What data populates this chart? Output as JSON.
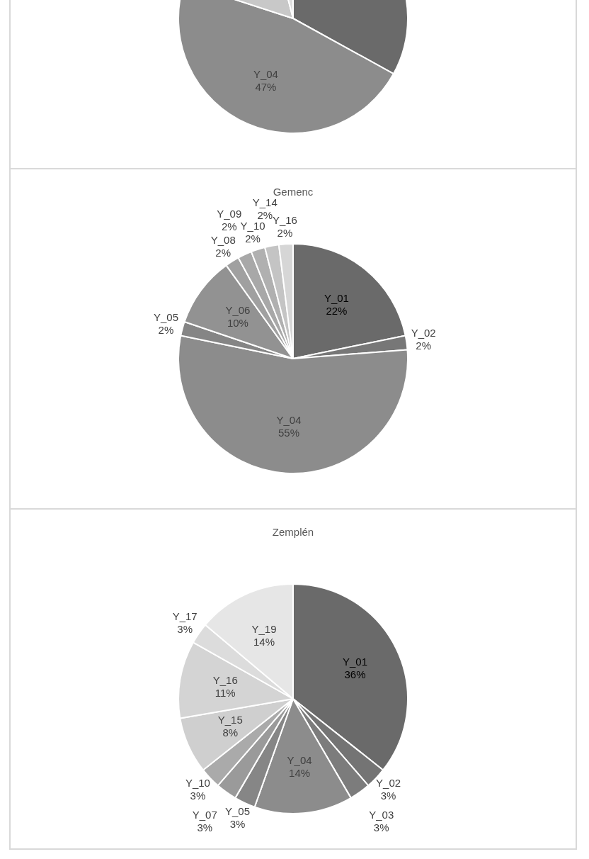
{
  "chart_data": [
    {
      "type": "pie",
      "categories": [
        null,
        "Y_04",
        null,
        null
      ],
      "values": [
        33,
        47,
        16,
        4
      ],
      "colors": [
        "#6a6a6a",
        "#8c8c8c",
        "#c8c8c8",
        "#dedede"
      ],
      "value_labels": [
        null,
        "47%",
        null,
        null
      ]
    },
    {
      "type": "pie",
      "title": "Gemenc",
      "categories": [
        "Y_01",
        "Y_02",
        "Y_04",
        "Y_05",
        "Y_06",
        "Y_08",
        "Y_09",
        "Y_10",
        "Y_14",
        "Y_16"
      ],
      "values": [
        22,
        2,
        55,
        2,
        10,
        2,
        2,
        2,
        2,
        2
      ],
      "colors": [
        "#6a6a6a",
        "#777777",
        "#8c8c8c",
        "#858585",
        "#929292",
        "#a0a0a0",
        "#a8a8a8",
        "#b0b0b0",
        "#c4c4c4",
        "#d6d6d6"
      ],
      "value_labels": [
        "22%",
        "2%",
        "55%",
        "2%",
        "10%",
        "2%",
        "2%",
        "2%",
        "2%",
        "2%"
      ]
    },
    {
      "type": "pie",
      "title": "Zemplén",
      "categories": [
        "Y_01",
        "Y_02",
        "Y_03",
        "Y_04",
        "Y_05",
        "Y_07",
        "Y_10",
        "Y_15",
        "Y_16",
        "Y_17",
        "Y_19"
      ],
      "values": [
        36,
        3,
        3,
        14,
        3,
        3,
        3,
        8,
        11,
        3,
        14
      ],
      "colors": [
        "#6a6a6a",
        "#747474",
        "#7c7c7c",
        "#8c8c8c",
        "#868686",
        "#9a9a9a",
        "#aaaaaa",
        "#cfcfcf",
        "#d4d4d4",
        "#dcdcdc",
        "#e6e6e6"
      ],
      "value_labels": [
        "36%",
        "3%",
        "3%",
        "14%",
        "3%",
        "3%",
        "3%",
        "8%",
        "11%",
        "3%",
        "14%"
      ]
    }
  ]
}
